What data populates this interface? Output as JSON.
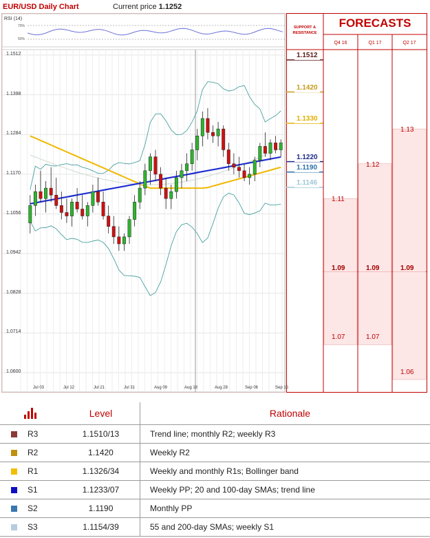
{
  "header": {
    "chart_title": "EUR/USD Daily Chart",
    "price_prefix": "Current price",
    "price_value": "1.1252"
  },
  "rsi": {
    "label": "RSI (14)",
    "levels": [
      "70%",
      "50%"
    ]
  },
  "support_resistance_header": [
    "SUPPORT &",
    "RESISTANCE"
  ],
  "forecasts": {
    "title": "FORECASTS",
    "columns": [
      "Q4 16",
      "Q1 17",
      "Q2 17"
    ],
    "values": [
      {
        "col": 0,
        "value": 1.11,
        "label": "1.11",
        "bold": false
      },
      {
        "col": 0,
        "value": 1.09,
        "label": "1.09",
        "bold": true
      },
      {
        "col": 0,
        "value": 1.07,
        "label": "1.07",
        "bold": false
      },
      {
        "col": 1,
        "value": 1.12,
        "label": "1.12",
        "bold": false
      },
      {
        "col": 1,
        "value": 1.09,
        "label": "1.09",
        "bold": true
      },
      {
        "col": 1,
        "value": 1.07,
        "label": "1.07",
        "bold": false
      },
      {
        "col": 2,
        "value": 1.13,
        "label": "1.13",
        "bold": false
      },
      {
        "col": 2,
        "value": 1.09,
        "label": "1.09",
        "bold": true
      },
      {
        "col": 2,
        "value": 1.06,
        "label": "1.06",
        "bold": false
      }
    ]
  },
  "levels_boxes": [
    {
      "label": "1.1512",
      "value": 1.1512,
      "bg": "#ffffff",
      "color": "#5b1a1a",
      "border": "#5b1a1a"
    },
    {
      "label": "1.1420",
      "value": 1.142,
      "bg": "#ffffff",
      "color": "#c79a1a",
      "border": "none"
    },
    {
      "label": "1.1330",
      "value": 1.133,
      "bg": "#ffffff",
      "color": "#e0b000",
      "border": "none"
    },
    {
      "label": "1.1220",
      "value": 1.122,
      "bg": "#ffffff",
      "color": "#1a2a8a",
      "border": "#1a2a8a"
    },
    {
      "label": "1.1190",
      "value": 1.119,
      "bg": "#ffffff",
      "color": "#2a6fa8",
      "border": "none"
    },
    {
      "label": "1.1146",
      "value": 1.1146,
      "bg": "#ffffff",
      "color": "#9ec6d8",
      "border": "none"
    }
  ],
  "chart_data": {
    "type": "candlestick",
    "y_ticks": [
      "1.1512",
      "1.1398",
      "1.1284",
      "1.1170",
      "1.1056",
      "1.0942",
      "1.0828",
      "1.0714",
      "1.0600"
    ],
    "ylim": [
      1.06,
      1.1512
    ],
    "x_ticks": [
      "Jul 03",
      "Jul 12",
      "Jul 21",
      "Jul 31",
      "Aug 09",
      "Aug 18",
      "Aug 28",
      "Sep 06",
      "Sep 15"
    ],
    "colors": {
      "up": "#2db52d",
      "down": "#d01010",
      "sma_blue": "#1f2fd0",
      "sma_yellow": "#f0b800",
      "bollinger": "#4aa0a0"
    },
    "candles": [
      [
        1.103,
        1.111,
        1.1,
        1.108
      ],
      [
        1.108,
        1.114,
        1.105,
        1.112
      ],
      [
        1.112,
        1.118,
        1.109,
        1.11
      ],
      [
        1.11,
        1.115,
        1.106,
        1.113
      ],
      [
        1.113,
        1.119,
        1.109,
        1.111
      ],
      [
        1.111,
        1.116,
        1.107,
        1.108
      ],
      [
        1.108,
        1.112,
        1.104,
        1.106
      ],
      [
        1.106,
        1.11,
        1.103,
        1.105
      ],
      [
        1.105,
        1.11,
        1.102,
        1.109
      ],
      [
        1.109,
        1.113,
        1.106,
        1.107
      ],
      [
        1.107,
        1.111,
        1.104,
        1.105
      ],
      [
        1.105,
        1.109,
        1.102,
        1.108
      ],
      [
        1.108,
        1.114,
        1.106,
        1.112
      ],
      [
        1.112,
        1.116,
        1.108,
        1.109
      ],
      [
        1.109,
        1.112,
        1.104,
        1.105
      ],
      [
        1.105,
        1.108,
        1.1,
        1.102
      ],
      [
        1.102,
        1.105,
        1.097,
        1.099
      ],
      [
        1.099,
        1.102,
        1.095,
        1.097
      ],
      [
        1.097,
        1.1,
        1.095,
        1.099
      ],
      [
        1.099,
        1.105,
        1.097,
        1.104
      ],
      [
        1.104,
        1.111,
        1.102,
        1.109
      ],
      [
        1.109,
        1.115,
        1.107,
        1.113
      ],
      [
        1.113,
        1.12,
        1.111,
        1.118
      ],
      [
        1.118,
        1.123,
        1.114,
        1.122
      ],
      [
        1.122,
        1.124,
        1.115,
        1.117
      ],
      [
        1.117,
        1.119,
        1.111,
        1.113
      ],
      [
        1.113,
        1.116,
        1.107,
        1.11
      ],
      [
        1.11,
        1.114,
        1.107,
        1.112
      ],
      [
        1.112,
        1.118,
        1.11,
        1.116
      ],
      [
        1.116,
        1.12,
        1.113,
        1.118
      ],
      [
        1.118,
        1.123,
        1.115,
        1.12
      ],
      [
        1.12,
        1.126,
        1.118,
        1.124
      ],
      [
        1.124,
        1.13,
        1.121,
        1.128
      ],
      [
        1.128,
        1.135,
        1.125,
        1.133
      ],
      [
        1.133,
        1.136,
        1.127,
        1.129
      ],
      [
        1.129,
        1.131,
        1.126,
        1.128
      ],
      [
        1.128,
        1.132,
        1.125,
        1.13
      ],
      [
        1.13,
        1.131,
        1.122,
        1.124
      ],
      [
        1.124,
        1.126,
        1.118,
        1.12
      ],
      [
        1.12,
        1.123,
        1.117,
        1.119
      ],
      [
        1.119,
        1.122,
        1.116,
        1.118
      ],
      [
        1.118,
        1.12,
        1.115,
        1.116
      ],
      [
        1.116,
        1.119,
        1.114,
        1.117
      ],
      [
        1.117,
        1.122,
        1.115,
        1.121
      ],
      [
        1.121,
        1.126,
        1.119,
        1.125
      ],
      [
        1.125,
        1.129,
        1.122,
        1.123
      ],
      [
        1.123,
        1.127,
        1.121,
        1.126
      ],
      [
        1.126,
        1.128,
        1.123,
        1.124
      ],
      [
        1.124,
        1.127,
        1.122,
        1.126
      ]
    ]
  },
  "table": {
    "headers": [
      "Level",
      "Rationale"
    ],
    "header_icon": "bar-chart-icon",
    "rows": [
      {
        "name": "R3",
        "color": "#8b3a3a",
        "level": "1.1510/13",
        "rationale": "Trend line; monthly R2; weekly R3"
      },
      {
        "name": "R2",
        "color": "#c09010",
        "level": "1.1420",
        "rationale": "Weekly R2"
      },
      {
        "name": "R1",
        "color": "#f0c000",
        "level": "1.1326/34",
        "rationale": "Weekly and monthly R1s; Bollinger band"
      },
      {
        "name": "S1",
        "color": "#1010c0",
        "level": "1.1233/07",
        "rationale": "Weekly PP; 20 and 100-day SMAs; trend line"
      },
      {
        "name": "S2",
        "color": "#3a78b0",
        "level": "1.1190",
        "rationale": "Monthly PP"
      },
      {
        "name": "S3",
        "color": "#b8cce0",
        "level": "1.1154/39",
        "rationale": "55 and 200-day SMAs; weekly S1"
      }
    ]
  }
}
